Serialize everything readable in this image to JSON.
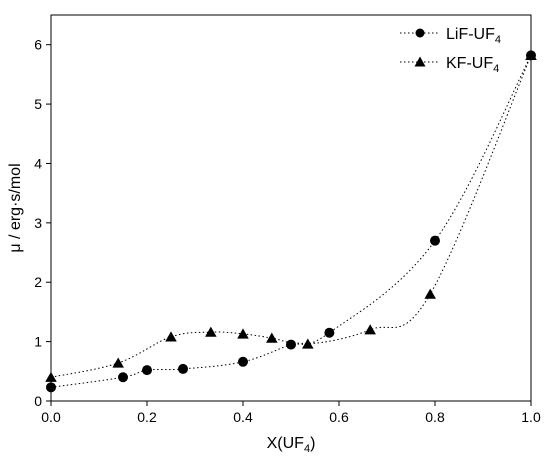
{
  "chart_data": {
    "type": "scatter",
    "xlabel_base": "X(UF",
    "xlabel_sub": "4",
    "xlabel_tail": ")",
    "ylabel": "μ / erg·s/mol",
    "xlim": [
      0,
      1.0
    ],
    "ylim": [
      0,
      6.5
    ],
    "x_ticks": [
      0,
      0.2,
      0.4,
      0.6,
      0.8,
      1.0
    ],
    "x_tick_labels": [
      "0.0",
      "0.2",
      "0.4",
      "0.6",
      "0.8",
      "1.0"
    ],
    "y_ticks": [
      0,
      1,
      2,
      3,
      4,
      5,
      6
    ],
    "y_tick_labels": [
      "0",
      "1",
      "2",
      "3",
      "4",
      "5",
      "6"
    ],
    "grid": false,
    "legend_position": "top-right",
    "series": [
      {
        "name_base": "LiF-UF",
        "name_sub": "4",
        "marker": "circle",
        "color": "#000000",
        "line_style": "dotted",
        "x": [
          0.0,
          0.15,
          0.2,
          0.275,
          0.4,
          0.5,
          0.58,
          0.8,
          1.0
        ],
        "y": [
          0.23,
          0.4,
          0.52,
          0.54,
          0.66,
          0.95,
          1.15,
          2.7,
          5.82
        ]
      },
      {
        "name_base": "KF-UF",
        "name_sub": "4",
        "marker": "triangle",
        "color": "#000000",
        "line_style": "dotted",
        "x": [
          0.0,
          0.14,
          0.25,
          0.333,
          0.4,
          0.46,
          0.535,
          0.665,
          0.79,
          1.0
        ],
        "y": [
          0.4,
          0.64,
          1.08,
          1.16,
          1.13,
          1.06,
          0.96,
          1.2,
          1.8,
          5.82
        ]
      }
    ]
  }
}
